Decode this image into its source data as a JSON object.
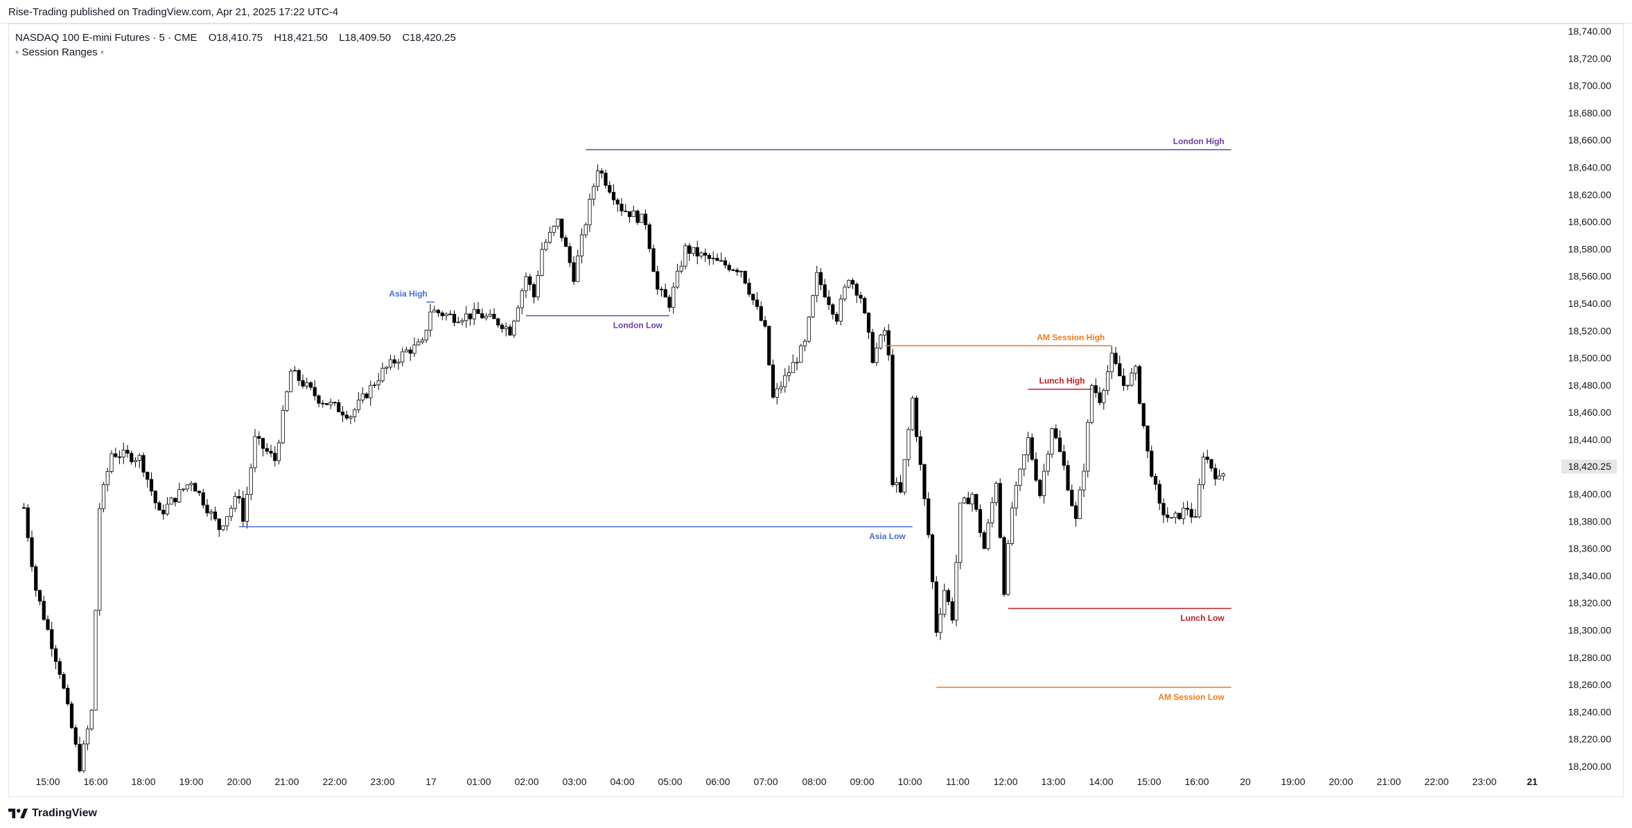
{
  "header": {
    "published": "Rise-Trading published on TradingView.com, Apr 21, 2025 17:22 UTC-4"
  },
  "legend": {
    "symbol": "NASDAQ 100 E-mini Futures · 5 · CME",
    "open": "O18,410.75",
    "high": "H18,421.50",
    "low": "L18,409.50",
    "close": "C18,420.25",
    "indicator": "◦ Session Ranges ◦"
  },
  "footer": {
    "brand": "TradingView",
    "logo_icon": "tradingview-logo-icon"
  },
  "colors": {
    "up_candle": "#ffffff",
    "down_candle": "#000000",
    "wick": "#000000",
    "asia": "#4a6bd6",
    "london": "#6a3ea8",
    "am_session": "#f07a1a",
    "lunch": "#c01c28",
    "price_tag_bg": "#e6e6e6"
  },
  "chart_data": {
    "type": "candlestick",
    "symbol": "NASDAQ 100 E-mini Futures",
    "timeframe": "5",
    "y_axis": {
      "range": [
        18190,
        18750
      ],
      "ticks": [
        "18,740.00",
        "18,720.00",
        "18,700.00",
        "18,680.00",
        "18,660.00",
        "18,640.00",
        "18,620.00",
        "18,600.00",
        "18,580.00",
        "18,560.00",
        "18,540.00",
        "18,520.00",
        "18,500.00",
        "18,480.00",
        "18,460.00",
        "18,440.00",
        "18,420.00",
        "18,400.00",
        "18,380.00",
        "18,360.00",
        "18,340.00",
        "18,320.00",
        "18,300.00",
        "18,280.00",
        "18,260.00",
        "18,240.00",
        "18,220.00",
        "18,200.00"
      ],
      "last_price_label": "18,420.25",
      "last_price": 18420.25
    },
    "x_axis": {
      "ticks": [
        {
          "label": "15:00",
          "bold": false
        },
        {
          "label": "16:00",
          "bold": false
        },
        {
          "label": "18:00",
          "bold": false
        },
        {
          "label": "19:00",
          "bold": false
        },
        {
          "label": "20:00",
          "bold": false
        },
        {
          "label": "21:00",
          "bold": false
        },
        {
          "label": "22:00",
          "bold": false
        },
        {
          "label": "23:00",
          "bold": false
        },
        {
          "label": "17",
          "bold": false
        },
        {
          "label": "01:00",
          "bold": false
        },
        {
          "label": "02:00",
          "bold": false
        },
        {
          "label": "03:00",
          "bold": false
        },
        {
          "label": "04:00",
          "bold": false
        },
        {
          "label": "05:00",
          "bold": false
        },
        {
          "label": "06:00",
          "bold": false
        },
        {
          "label": "07:00",
          "bold": false
        },
        {
          "label": "08:00",
          "bold": false
        },
        {
          "label": "09:00",
          "bold": false
        },
        {
          "label": "10:00",
          "bold": false
        },
        {
          "label": "11:00",
          "bold": false
        },
        {
          "label": "12:00",
          "bold": false
        },
        {
          "label": "13:00",
          "bold": false
        },
        {
          "label": "14:00",
          "bold": false
        },
        {
          "label": "15:00",
          "bold": false
        },
        {
          "label": "16:00",
          "bold": false
        },
        {
          "label": "20",
          "bold": false
        },
        {
          "label": "19:00",
          "bold": false
        },
        {
          "label": "20:00",
          "bold": false
        },
        {
          "label": "21:00",
          "bold": false
        },
        {
          "label": "22:00",
          "bold": false
        },
        {
          "label": "23:00",
          "bold": false
        },
        {
          "label": "21",
          "bold": true
        }
      ]
    },
    "session_levels": [
      {
        "name": "Asia High",
        "price": 18541,
        "from": "23:55",
        "to": "00:05",
        "color": "asia"
      },
      {
        "name": "Asia Low",
        "price": 18376,
        "from": "20:00",
        "to": "10:05",
        "color": "asia"
      },
      {
        "name": "London High",
        "price": 18653,
        "from": "03:15",
        "to": "16:45",
        "color": "london"
      },
      {
        "name": "London Low",
        "price": 18531,
        "from": "02:00",
        "to": "05:00",
        "color": "london"
      },
      {
        "name": "AM Session High",
        "price": 18509,
        "from": "09:30",
        "to": "14:15",
        "color": "am_session"
      },
      {
        "name": "AM Session Low",
        "price": 18258,
        "from": "10:35",
        "to": "16:45",
        "color": "am_session"
      },
      {
        "name": "Lunch High",
        "price": 18477,
        "from": "12:30",
        "to": "13:50",
        "color": "lunch"
      },
      {
        "name": "Lunch Low",
        "price": 18316,
        "from": "12:05",
        "to": "16:45",
        "color": "lunch"
      }
    ],
    "series_anchors": [
      {
        "time": "14:30",
        "price": 18390
      },
      {
        "time": "14:45",
        "price": 18330
      },
      {
        "time": "15:15",
        "price": 18270
      },
      {
        "time": "15:40",
        "price": 18200
      },
      {
        "time": "15:55",
        "price": 18240
      },
      {
        "time": "16:05",
        "price": 18390
      },
      {
        "time": "16:20",
        "price": 18430
      },
      {
        "time": "18:00",
        "price": 18420
      },
      {
        "time": "18:20",
        "price": 18385
      },
      {
        "time": "19:00",
        "price": 18410
      },
      {
        "time": "19:35",
        "price": 18375
      },
      {
        "time": "20:00",
        "price": 18400
      },
      {
        "time": "20:05",
        "price": 18380
      },
      {
        "time": "20:20",
        "price": 18440
      },
      {
        "time": "20:45",
        "price": 18425
      },
      {
        "time": "21:05",
        "price": 18490
      },
      {
        "time": "21:40",
        "price": 18470
      },
      {
        "time": "22:20",
        "price": 18458
      },
      {
        "time": "23:00",
        "price": 18490
      },
      {
        "time": "23:30",
        "price": 18505
      },
      {
        "time": "23:50",
        "price": 18510
      },
      {
        "time": "00:00",
        "price": 18535
      },
      {
        "time": "00:30",
        "price": 18530
      },
      {
        "time": "01:00",
        "price": 18532
      },
      {
        "time": "01:30",
        "price": 18525
      },
      {
        "time": "01:40",
        "price": 18520
      },
      {
        "time": "02:00",
        "price": 18560
      },
      {
        "time": "02:10",
        "price": 18545
      },
      {
        "time": "02:20",
        "price": 18580
      },
      {
        "time": "02:40",
        "price": 18600
      },
      {
        "time": "03:00",
        "price": 18560
      },
      {
        "time": "03:15",
        "price": 18600
      },
      {
        "time": "03:30",
        "price": 18640
      },
      {
        "time": "04:00",
        "price": 18610
      },
      {
        "time": "04:30",
        "price": 18600
      },
      {
        "time": "04:45",
        "price": 18550
      },
      {
        "time": "05:00",
        "price": 18540
      },
      {
        "time": "05:20",
        "price": 18580
      },
      {
        "time": "06:00",
        "price": 18570
      },
      {
        "time": "06:30",
        "price": 18565
      },
      {
        "time": "07:00",
        "price": 18520
      },
      {
        "time": "07:10",
        "price": 18470
      },
      {
        "time": "07:30",
        "price": 18490
      },
      {
        "time": "07:50",
        "price": 18510
      },
      {
        "time": "08:05",
        "price": 18560
      },
      {
        "time": "08:30",
        "price": 18530
      },
      {
        "time": "08:45",
        "price": 18560
      },
      {
        "time": "09:00",
        "price": 18545
      },
      {
        "time": "09:15",
        "price": 18500
      },
      {
        "time": "09:30",
        "price": 18520
      },
      {
        "time": "09:35",
        "price": 18500
      },
      {
        "time": "09:40",
        "price": 18410
      },
      {
        "time": "09:50",
        "price": 18400
      },
      {
        "time": "10:05",
        "price": 18470
      },
      {
        "time": "10:15",
        "price": 18420
      },
      {
        "time": "10:25",
        "price": 18370
      },
      {
        "time": "10:35",
        "price": 18300
      },
      {
        "time": "10:45",
        "price": 18330
      },
      {
        "time": "10:55",
        "price": 18310
      },
      {
        "time": "11:05",
        "price": 18390
      },
      {
        "time": "11:20",
        "price": 18400
      },
      {
        "time": "11:35",
        "price": 18360
      },
      {
        "time": "11:50",
        "price": 18410
      },
      {
        "time": "12:00",
        "price": 18330
      },
      {
        "time": "12:10",
        "price": 18390
      },
      {
        "time": "12:30",
        "price": 18440
      },
      {
        "time": "12:45",
        "price": 18400
      },
      {
        "time": "13:00",
        "price": 18450
      },
      {
        "time": "13:15",
        "price": 18420
      },
      {
        "time": "13:30",
        "price": 18380
      },
      {
        "time": "13:40",
        "price": 18420
      },
      {
        "time": "13:50",
        "price": 18480
      },
      {
        "time": "14:00",
        "price": 18470
      },
      {
        "time": "14:15",
        "price": 18500
      },
      {
        "time": "14:30",
        "price": 18480
      },
      {
        "time": "14:45",
        "price": 18490
      },
      {
        "time": "15:00",
        "price": 18430
      },
      {
        "time": "15:15",
        "price": 18390
      },
      {
        "time": "15:30",
        "price": 18380
      },
      {
        "time": "15:50",
        "price": 18390
      },
      {
        "time": "16:00",
        "price": 18380
      },
      {
        "time": "16:10",
        "price": 18430
      },
      {
        "time": "16:30",
        "price": 18410
      },
      {
        "time": "16:40",
        "price": 18420.25
      }
    ]
  }
}
